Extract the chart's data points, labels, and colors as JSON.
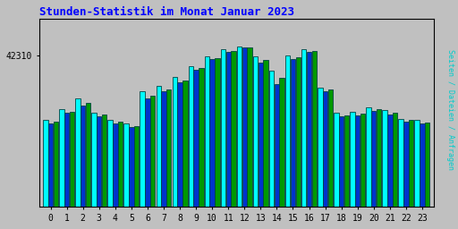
{
  "title": "Stunden-Statistik im Monat Januar 2023",
  "title_color": "#0000FF",
  "ylabel": "Seiten / Dateien / Anfragen",
  "ylabel_color": "#00CCCC",
  "xlabel_labels": [
    "0",
    "1",
    "2",
    "3",
    "4",
    "5",
    "6",
    "7",
    "8",
    "9",
    "10",
    "11",
    "12",
    "13",
    "14",
    "15",
    "16",
    "17",
    "18",
    "19",
    "20",
    "21",
    "22",
    "23"
  ],
  "ytick_label": "42310",
  "background_color": "#C0C0C0",
  "plot_bg_color": "#C0C0C0",
  "bar_colors": [
    "#00FFFF",
    "#0033CC",
    "#009900"
  ],
  "bar_edge_color": "#004444",
  "seiten": [
    42220,
    42235,
    42250,
    42230,
    42220,
    42215,
    42260,
    42268,
    42280,
    42295,
    42308,
    42318,
    42322,
    42308,
    42288,
    42310,
    42318,
    42265,
    42230,
    42232,
    42238,
    42234,
    42222,
    42220
  ],
  "dateien": [
    42215,
    42230,
    42240,
    42225,
    42215,
    42210,
    42250,
    42260,
    42272,
    42290,
    42304,
    42315,
    42320,
    42300,
    42270,
    42305,
    42314,
    42260,
    42225,
    42227,
    42233,
    42228,
    42218,
    42215
  ],
  "anfragen": [
    42218,
    42232,
    42244,
    42228,
    42218,
    42212,
    42254,
    42263,
    42275,
    42292,
    42306,
    42316,
    42321,
    42303,
    42278,
    42307,
    42316,
    42262,
    42227,
    42229,
    42235,
    42230,
    42220,
    42217
  ],
  "ymin": 42100,
  "ymax": 42360,
  "yticks": [
    42310
  ],
  "figsize": [
    5.12,
    2.56
  ],
  "dpi": 100
}
